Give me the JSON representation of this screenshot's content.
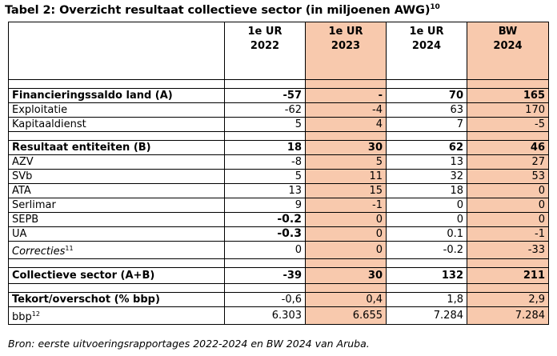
{
  "title": {
    "text": "Tabel 2: Overzicht resultaat collectieve sector (in miljoenen AWG)",
    "footnote": "10"
  },
  "columns": [
    {
      "line1": "1e UR",
      "line2": "2022",
      "shaded": false
    },
    {
      "line1": "1e UR",
      "line2": "2023",
      "shaded": true
    },
    {
      "line1": "1e UR",
      "line2": "2024",
      "shaded": false
    },
    {
      "line1": "BW",
      "line2": "2024",
      "shaded": true
    }
  ],
  "rows": [
    {
      "type": "spacer"
    },
    {
      "label": "Financieringssaldo land (A)",
      "values": [
        "-57",
        "-",
        "70",
        "165"
      ],
      "bold": true
    },
    {
      "label": "Exploitatie",
      "values": [
        "-62",
        "-4",
        "63",
        "170"
      ]
    },
    {
      "label": "Kapitaaldienst",
      "values": [
        "5",
        "4",
        "7",
        "-5"
      ]
    },
    {
      "type": "spacer"
    },
    {
      "label": "Resultaat entiteiten (B)",
      "values": [
        "18",
        "30",
        "62",
        "46"
      ],
      "bold": true
    },
    {
      "label": "AZV",
      "values": [
        "-8",
        "5",
        "13",
        "27"
      ]
    },
    {
      "label": "SVb",
      "values": [
        "5",
        "11",
        "32",
        "53"
      ]
    },
    {
      "label": "ATA",
      "values": [
        "13",
        "15",
        "18",
        "0"
      ]
    },
    {
      "label": "Serlimar",
      "values": [
        "9",
        "-1",
        "0",
        "0"
      ]
    },
    {
      "label": "SEPB",
      "values": [
        "-0.2",
        "0",
        "0",
        "0"
      ],
      "bold_cols": [
        0
      ],
      "big_cols": [
        0
      ]
    },
    {
      "label": "UA",
      "values": [
        "-0.3",
        "0",
        "0.1",
        "-1"
      ],
      "bold_cols": [
        0
      ],
      "big_cols": [
        0
      ]
    },
    {
      "label": "Correcties",
      "label_sup": "11",
      "italic": true,
      "values": [
        "0",
        "0",
        "-0.2",
        "-33"
      ]
    },
    {
      "type": "spacer"
    },
    {
      "label": "Collectieve sector (A+B)",
      "values": [
        "-39",
        "30",
        "132",
        "211"
      ],
      "bold": true,
      "tall": true
    },
    {
      "type": "spacer"
    },
    {
      "label": "Tekort/overschot (% bbp)",
      "values": [
        "-0,6",
        "0,4",
        "1,8",
        "2,9"
      ],
      "bold_label": true
    },
    {
      "label": "bbp",
      "label_sup": "12",
      "values": [
        "6.303",
        "6.655",
        "7.284",
        "7.284"
      ]
    }
  ],
  "source": "Bron: eerste uitvoeringsrapportages 2022-2024 en BW 2024 van Aruba."
}
